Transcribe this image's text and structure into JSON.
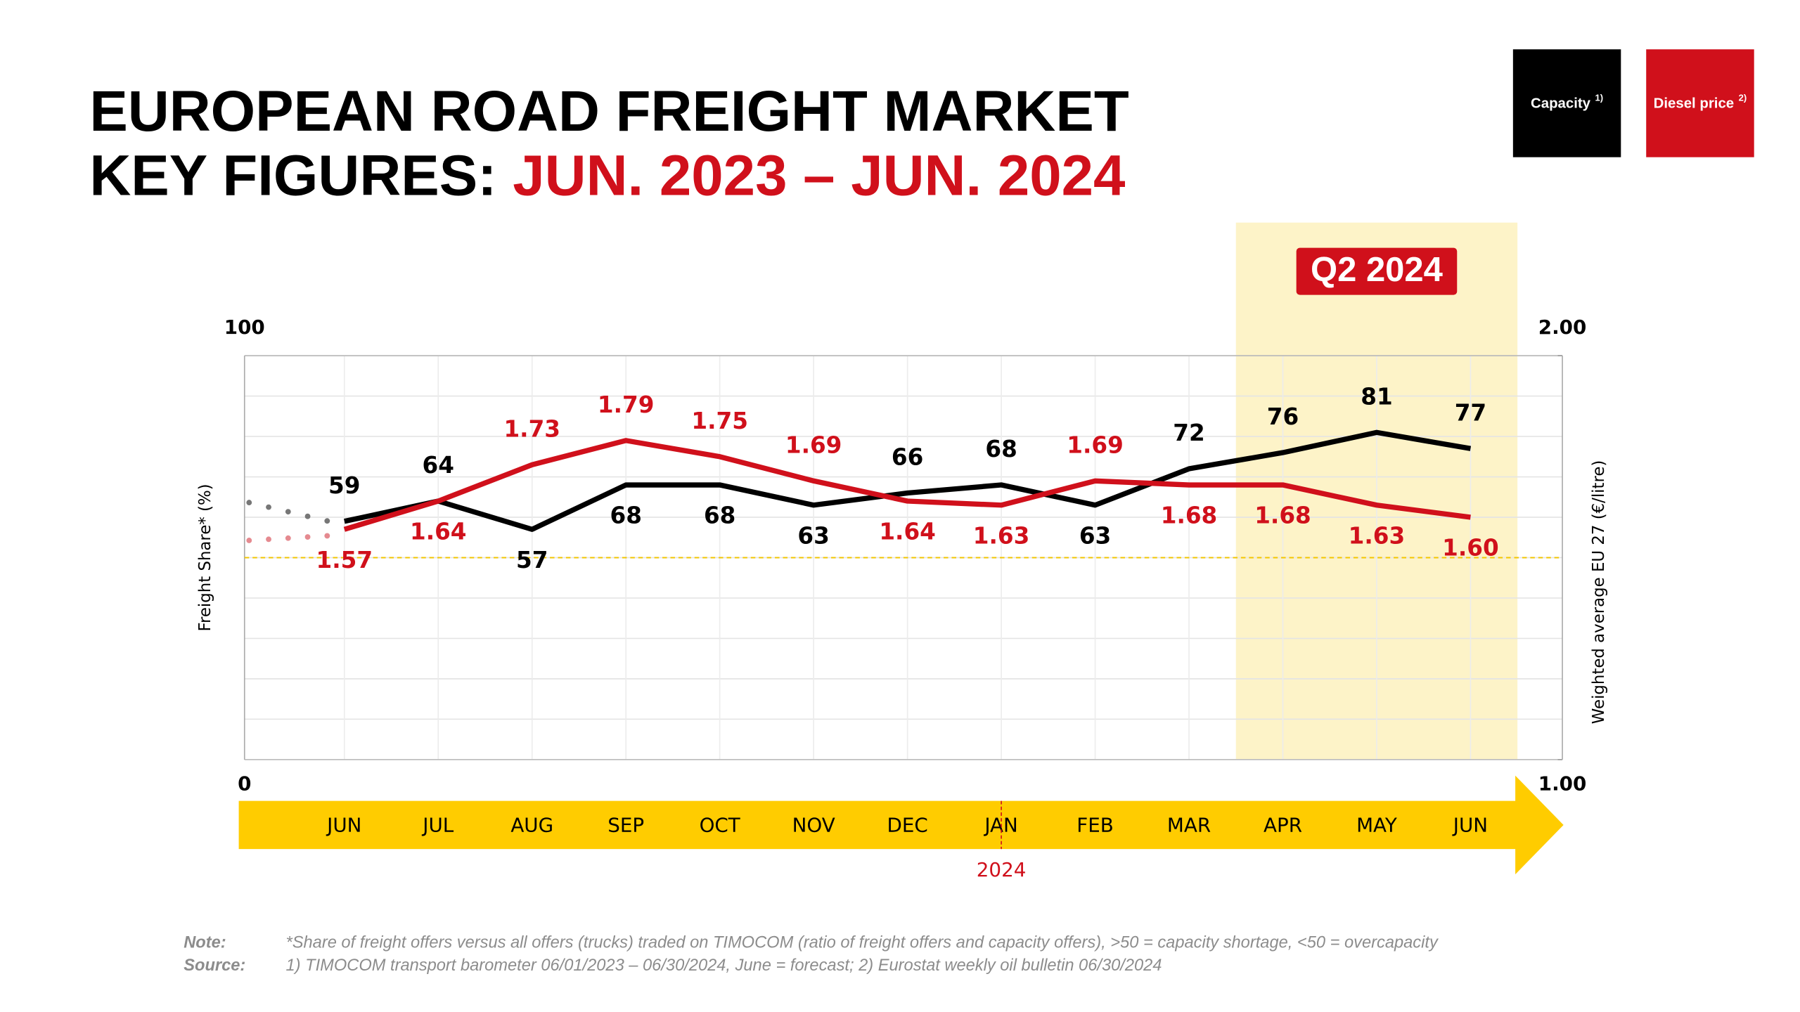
{
  "chart_data": {
    "type": "line",
    "title": {
      "line1": "EUROPEAN ROAD FREIGHT MARKET",
      "line2_prefix": "KEY FIGURES:",
      "line2_highlight": "JUN. 2023 – JUN. 2024"
    },
    "categories": [
      "JUN",
      "JUL",
      "AUG",
      "SEP",
      "OCT",
      "NOV",
      "DEC",
      "JAN",
      "FEB",
      "MAR",
      "APR",
      "MAY",
      "JUN"
    ],
    "series": [
      {
        "name": "Capacity",
        "note": "1)",
        "color": "#000000",
        "values": [
          59,
          64,
          57,
          68,
          68,
          63,
          66,
          68,
          63,
          72,
          76,
          81,
          77
        ]
      },
      {
        "name": "Diesel price",
        "note": "2)",
        "color": "#d0101b",
        "axis": "y2",
        "values": [
          1.57,
          1.64,
          1.73,
          1.79,
          1.75,
          1.69,
          1.64,
          1.63,
          1.69,
          1.68,
          1.68,
          1.63,
          1.6
        ],
        "value_labels": [
          "1.57",
          "1.64",
          "1.73",
          "1.79",
          "1.75",
          "1.69",
          "1.64",
          "1.63",
          "1.69",
          "1.68",
          "1.68",
          "1.63",
          "1.60"
        ]
      }
    ],
    "ylabel": "Freight Share* (%)",
    "y2label": "Weighted average EU 27 (€/litre)",
    "ylim": [
      0,
      100
    ],
    "yticks": [
      0,
      100
    ],
    "minor_yticks": [
      10,
      20,
      30,
      40,
      50,
      60,
      70,
      80,
      90
    ],
    "y2lim": [
      1.0,
      2.0
    ],
    "y2ticks": [
      {
        "value": 1.0,
        "label": "1.00"
      },
      {
        "value": 2.0,
        "label": "2.00"
      }
    ],
    "reference_line": {
      "value": 50,
      "color": "#f2c500"
    },
    "grid": true,
    "highlight": {
      "label": "Q2 2024",
      "first_index": 10,
      "last_index": 12
    },
    "year_marker": {
      "label": "2024",
      "index": 7
    },
    "notes": {
      "note_label": "Note:",
      "note": "*Share of freight offers versus all offers (trucks) traded on TIMOCOM (ratio of freight offers and capacity offers), >50 = capacity shortage, <50 = overcapacity",
      "source_label": "Source:",
      "source": "1) TIMOCOM transport barometer  06/01/2023 – 06/30/2024, June = forecast; 2) Eurostat weekly oil bulletin 06/30/2024"
    }
  }
}
